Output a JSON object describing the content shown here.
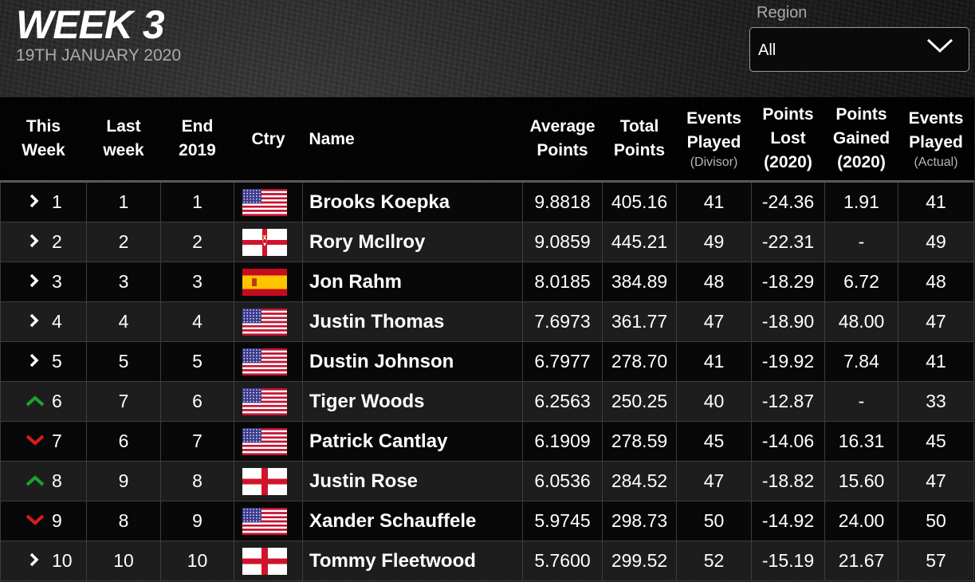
{
  "header": {
    "title": "WEEK 3",
    "date": "19TH JANUARY 2020",
    "region_label": "Region",
    "region_value": "All"
  },
  "columns": {
    "this_week": [
      "This",
      "Week"
    ],
    "last_week": [
      "Last",
      "week"
    ],
    "end_2019": [
      "End",
      "2019"
    ],
    "country": "Ctry",
    "name": "Name",
    "average_points": [
      "Average",
      "Points"
    ],
    "total_points": [
      "Total",
      "Points"
    ],
    "events_played_divisor": [
      "Events",
      "Played",
      "(Divisor)"
    ],
    "points_lost": [
      "Points",
      "Lost",
      "(2020)"
    ],
    "points_gained": [
      "Points",
      "Gained",
      "(2020)"
    ],
    "events_played_actual": [
      "Events",
      "Played",
      "(Actual)"
    ]
  },
  "colors": {
    "up": "#1fa12f",
    "down": "#d81b1b",
    "same": "#ffffff"
  },
  "rows": [
    {
      "movement": "same",
      "rank": "1",
      "last": "1",
      "end2019": "1",
      "country": "usa-flag",
      "name": "Brooks Koepka",
      "avg": "9.8818",
      "total": "405.16",
      "events_div": "41",
      "lost": "-24.36",
      "gained": "1.91",
      "events_act": "41"
    },
    {
      "movement": "same",
      "rank": "2",
      "last": "2",
      "end2019": "2",
      "country": "northern-ireland-flag",
      "name": "Rory McIlroy",
      "avg": "9.0859",
      "total": "445.21",
      "events_div": "49",
      "lost": "-22.31",
      "gained": "-",
      "events_act": "49"
    },
    {
      "movement": "same",
      "rank": "3",
      "last": "3",
      "end2019": "3",
      "country": "spain-flag",
      "name": "Jon Rahm",
      "avg": "8.0185",
      "total": "384.89",
      "events_div": "48",
      "lost": "-18.29",
      "gained": "6.72",
      "events_act": "48"
    },
    {
      "movement": "same",
      "rank": "4",
      "last": "4",
      "end2019": "4",
      "country": "usa-flag",
      "name": "Justin Thomas",
      "avg": "7.6973",
      "total": "361.77",
      "events_div": "47",
      "lost": "-18.90",
      "gained": "48.00",
      "events_act": "47"
    },
    {
      "movement": "same",
      "rank": "5",
      "last": "5",
      "end2019": "5",
      "country": "usa-flag",
      "name": "Dustin Johnson",
      "avg": "6.7977",
      "total": "278.70",
      "events_div": "41",
      "lost": "-19.92",
      "gained": "7.84",
      "events_act": "41"
    },
    {
      "movement": "up",
      "rank": "6",
      "last": "7",
      "end2019": "6",
      "country": "usa-flag",
      "name": "Tiger Woods",
      "avg": "6.2563",
      "total": "250.25",
      "events_div": "40",
      "lost": "-12.87",
      "gained": "-",
      "events_act": "33"
    },
    {
      "movement": "down",
      "rank": "7",
      "last": "6",
      "end2019": "7",
      "country": "usa-flag",
      "name": "Patrick Cantlay",
      "avg": "6.1909",
      "total": "278.59",
      "events_div": "45",
      "lost": "-14.06",
      "gained": "16.31",
      "events_act": "45"
    },
    {
      "movement": "up",
      "rank": "8",
      "last": "9",
      "end2019": "8",
      "country": "england-flag",
      "name": "Justin Rose",
      "avg": "6.0536",
      "total": "284.52",
      "events_div": "47",
      "lost": "-18.82",
      "gained": "15.60",
      "events_act": "47"
    },
    {
      "movement": "down",
      "rank": "9",
      "last": "8",
      "end2019": "9",
      "country": "usa-flag",
      "name": "Xander Schauffele",
      "avg": "5.9745",
      "total": "298.73",
      "events_div": "50",
      "lost": "-14.92",
      "gained": "24.00",
      "events_act": "50"
    },
    {
      "movement": "same",
      "rank": "10",
      "last": "10",
      "end2019": "10",
      "country": "england-flag",
      "name": "Tommy Fleetwood",
      "avg": "5.7600",
      "total": "299.52",
      "events_div": "52",
      "lost": "-15.19",
      "gained": "21.67",
      "events_act": "57"
    }
  ]
}
